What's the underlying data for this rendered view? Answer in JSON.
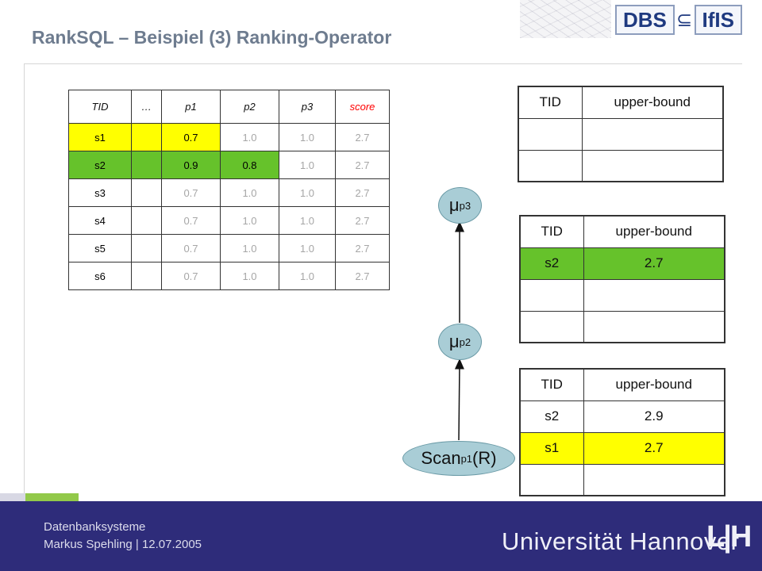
{
  "title": "RankSQL – Beispiel (3) Ranking-Operator",
  "logo": {
    "left": "DBS",
    "symbol": "⊆",
    "right": "IfIS"
  },
  "main_table": {
    "headers": [
      "TID",
      "…",
      "p1",
      "p2",
      "p3",
      "score"
    ],
    "rows": [
      {
        "tid": "s1",
        "p1": "0.7",
        "p2": "1.0",
        "p3": "1.0",
        "score": "2.7"
      },
      {
        "tid": "s2",
        "p1": "0.9",
        "p2": "0.8",
        "p3": "1.0",
        "score": "2.7"
      },
      {
        "tid": "s3",
        "p1": "0.7",
        "p2": "1.0",
        "p3": "1.0",
        "score": "2.7"
      },
      {
        "tid": "s4",
        "p1": "0.7",
        "p2": "1.0",
        "p3": "1.0",
        "score": "2.7"
      },
      {
        "tid": "s5",
        "p1": "0.7",
        "p2": "1.0",
        "p3": "1.0",
        "score": "2.7"
      },
      {
        "tid": "s6",
        "p1": "0.7",
        "p2": "1.0",
        "p3": "1.0",
        "score": "2.7"
      }
    ],
    "colors": {
      "s1": "#ffff00",
      "s2": "#66c22b",
      "score_header": "#ff0000"
    }
  },
  "ub_tables": {
    "headers": [
      "TID",
      "upper-bound"
    ],
    "mu_p3": [],
    "mu_p2": [
      {
        "tid": "s2",
        "ub": "2.7"
      }
    ],
    "scan": [
      {
        "tid": "s2",
        "ub": "2.9"
      },
      {
        "tid": "s1",
        "ub": "2.7"
      }
    ]
  },
  "operators": {
    "mu3": {
      "symbol": "μ",
      "sub": "p3"
    },
    "mu2": {
      "symbol": "μ",
      "sub": "p2"
    },
    "scan": {
      "symbol": "Scan",
      "sub": "p1",
      "arg": "(R)"
    }
  },
  "footer": {
    "line1": "Datenbanksysteme",
    "line2": "Markus Spehling | 12.07.2005",
    "university": "Universität Hannover",
    "mark": "L|H"
  }
}
